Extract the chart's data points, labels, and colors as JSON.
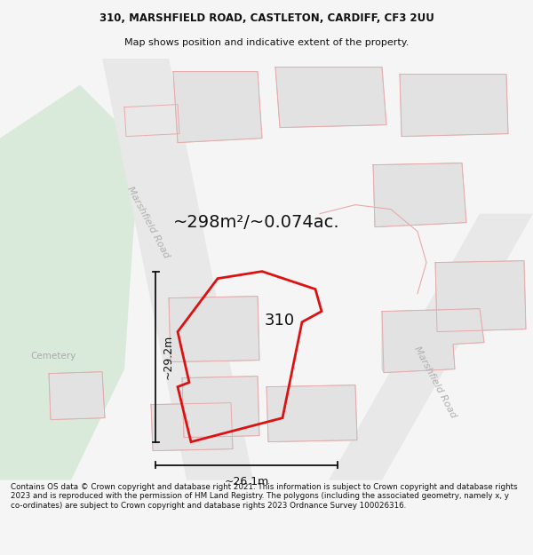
{
  "title_line1": "310, MARSHFIELD ROAD, CASTLETON, CARDIFF, CF3 2UU",
  "title_line2": "Map shows position and indicative extent of the property.",
  "area_text": "~298m²/~0.074ac.",
  "label_310": "310",
  "dim_height": "~29.2m",
  "dim_width": "~26.1m",
  "cemetery_label": "Cemetery",
  "road_label_top": "Marshfield Road",
  "road_label_bottom": "Marshfield Road",
  "footer_text": "Contains OS data © Crown copyright and database right 2021. This information is subject to Crown copyright and database rights 2023 and is reproduced with the permission of HM Land Registry. The polygons (including the associated geometry, namely x, y co-ordinates) are subject to Crown copyright and database rights 2023 Ordnance Survey 100026316.",
  "bg_color": "#f5f5f5",
  "map_bg": "#ffffff",
  "green_area_color": "#daeada",
  "road_color": "#e8e8e8",
  "building_fill": "#e2e2e2",
  "building_edge": "#c8c8c8",
  "red_boundary_color": "#dd1111",
  "pink_line_color": "#e8aaaa",
  "dim_line_color": "#111111",
  "road_label_color": "#b0b0b0",
  "cemetery_color": "#aaaaaa",
  "text_color": "#111111",
  "title_fontsize": 8.5,
  "subtitle_fontsize": 8.0,
  "footer_fontsize": 6.3,
  "area_fontsize": 14,
  "label_fontsize": 13,
  "dim_fontsize": 9,
  "road_label_fontsize": 8,
  "cemetery_fontsize": 7.5
}
